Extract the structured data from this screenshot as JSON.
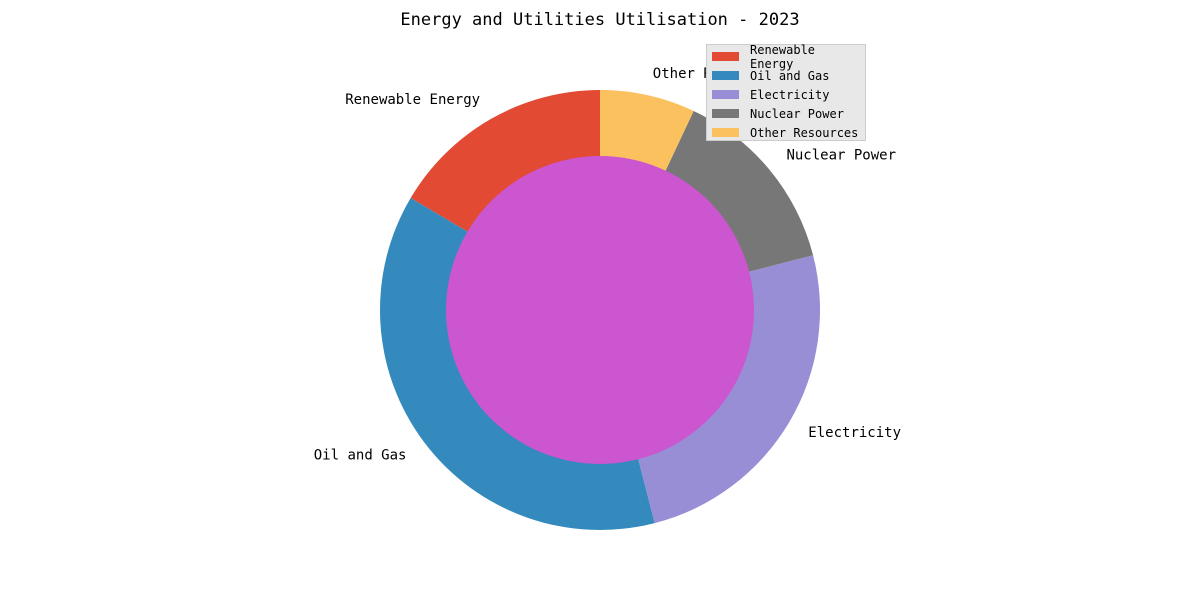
{
  "chart_data": {
    "type": "pie",
    "title": "Energy and Utilities Utilisation - 2023",
    "categories": [
      "Renewable Energy",
      "Oil and Gas",
      "Electricity",
      "Nuclear Power",
      "Other Resources"
    ],
    "values": [
      16.5,
      37.5,
      25.0,
      14.0,
      7.0
    ],
    "colors": [
      "#E24A33",
      "#348ABD",
      "#988ED5",
      "#777777",
      "#FBC15E"
    ],
    "center_color": "#CC55D0",
    "legend_position": "top-right",
    "start_angle": 90,
    "direction": "counterclockwise"
  }
}
